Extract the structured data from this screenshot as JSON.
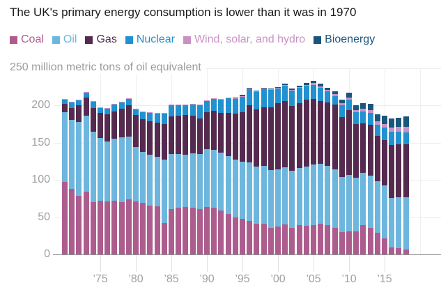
{
  "title": "The UK's primary energy consumption is lower than it was in 1970",
  "axis": {
    "unit_label": "250 million metric tons of oil equivalent",
    "y_ticks": [
      0,
      50,
      100,
      150,
      200
    ],
    "y_gridlines": [
      50,
      100,
      150,
      200,
      250
    ],
    "x_tick_labels": [
      "’75",
      "’80",
      "’85",
      "’90",
      "’95",
      "’00",
      "’05",
      "’10",
      "’15"
    ],
    "x_tick_years": [
      1975,
      1980,
      1985,
      1990,
      1995,
      2000,
      2005,
      2010,
      2015
    ],
    "extra_gridline_year": 2020
  },
  "colors": {
    "coal": "#ad5c8e",
    "oil": "#6db6de",
    "gas": "#552a4f",
    "nuclear": "#2191d0",
    "wind_solar_hydro": "#c992c4",
    "bioenergy": "#1a567c",
    "title_text": "#1a1a1a",
    "muted_text": "#9c9c9c",
    "gridline": "#ececec",
    "axis_line": "#8f8f8f"
  },
  "chart_data": {
    "type": "bar",
    "stacked": true,
    "title": "The UK's primary energy consumption is lower than it was in 1970",
    "xlabel": "",
    "ylabel": "million metric tons of oil equivalent",
    "ylim": [
      0,
      250
    ],
    "grid": true,
    "legend_position": "top",
    "x_start_year": 1970,
    "x_end_year": 2018,
    "series": [
      {
        "name": "Coal",
        "color": "#ad5c8e",
        "values": [
          97,
          88,
          79,
          84,
          70,
          72,
          71,
          72,
          70,
          74,
          71,
          69,
          66,
          65,
          42,
          61,
          63,
          64,
          63,
          61,
          64,
          63,
          59,
          54,
          50,
          48,
          45,
          41,
          41,
          36,
          37,
          40,
          36,
          39,
          38,
          39,
          41,
          39,
          36,
          30,
          31,
          31,
          39,
          36,
          29,
          22,
          9,
          8,
          7
        ]
      },
      {
        "name": "Oil",
        "color": "#6db6de",
        "values": [
          94,
          93,
          99,
          102,
          95,
          84,
          81,
          83,
          87,
          84,
          73,
          69,
          68,
          66,
          85,
          74,
          72,
          70,
          73,
          74,
          77,
          77,
          78,
          78,
          77,
          77,
          79,
          77,
          78,
          77,
          77,
          77,
          76,
          77,
          80,
          82,
          81,
          80,
          78,
          74,
          76,
          72,
          71,
          70,
          69,
          71,
          67,
          69,
          70
        ]
      },
      {
        "name": "Gas",
        "color": "#552a4f",
        "values": [
          11,
          16,
          22,
          25,
          32,
          34,
          36,
          37,
          39,
          42,
          43,
          44,
          45,
          46,
          48,
          50,
          51,
          53,
          50,
          48,
          50,
          53,
          53,
          58,
          62,
          66,
          76,
          77,
          79,
          85,
          89,
          89,
          87,
          87,
          90,
          88,
          84,
          85,
          87,
          80,
          87,
          72,
          66,
          68,
          61,
          61,
          71,
          71,
          71
        ]
      },
      {
        "name": "Nuclear",
        "color": "#2191d0",
        "values": [
          6,
          7,
          7,
          6,
          8,
          7,
          8,
          9,
          8,
          9,
          8,
          9,
          11,
          12,
          14,
          15,
          14,
          13,
          15,
          17,
          15,
          16,
          18,
          20,
          20,
          21,
          22,
          23,
          24,
          23,
          20,
          21,
          21,
          21,
          19,
          19,
          18,
          15,
          12,
          16,
          14,
          16,
          16,
          16,
          15,
          16,
          18,
          17,
          16
        ]
      },
      {
        "name": "Wind, solar, and hydro",
        "color": "#c992c4",
        "values": [
          1,
          1,
          1,
          1,
          1,
          1,
          1,
          1,
          1,
          1,
          1,
          1,
          1,
          1,
          1,
          1,
          1,
          1,
          1,
          1,
          1,
          1,
          1,
          1,
          1,
          1,
          1,
          1,
          1,
          1,
          1,
          1,
          1,
          1,
          1,
          2,
          2,
          2,
          2,
          3,
          3,
          3,
          4,
          4,
          5,
          5,
          5,
          6,
          7
        ]
      },
      {
        "name": "Bioenergy",
        "color": "#1a567c",
        "values": [
          0,
          0,
          0,
          0,
          0,
          0,
          0,
          0,
          0,
          0,
          0,
          0,
          0,
          0,
          0,
          0,
          0,
          0,
          0,
          0,
          0,
          0,
          0,
          0,
          1,
          1,
          1,
          1,
          1,
          1,
          1,
          1,
          2,
          2,
          2,
          3,
          3,
          3,
          4,
          5,
          6,
          6,
          7,
          8,
          9,
          11,
          13,
          13,
          14
        ]
      }
    ]
  }
}
